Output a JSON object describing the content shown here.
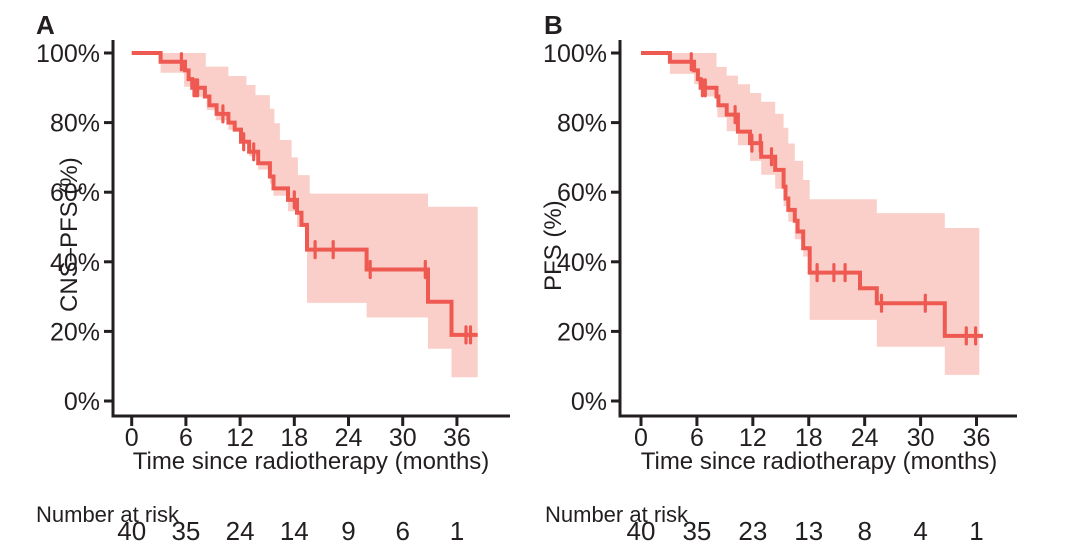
{
  "figure": {
    "colors": {
      "line": "#ee5a52",
      "band": "#fbcfc9",
      "axis": "#231f20",
      "text": "#231f20",
      "background": "#ffffff"
    }
  },
  "chart_data": [
    {
      "type": "line",
      "subtype": "kaplan-meier-step",
      "panel_label": "A",
      "ylabel": "CNS–PFS (%)",
      "xlabel": "Time since radiotherapy (months)",
      "risk_heading": "Number at risk",
      "x_ticks": [
        0,
        6,
        12,
        18,
        24,
        30,
        36
      ],
      "y_ticks": [
        "0%",
        "20%",
        "40%",
        "60%",
        "80%",
        "100%"
      ],
      "y_tick_values": [
        0,
        20,
        40,
        60,
        80,
        100
      ],
      "xlim": [
        0,
        42
      ],
      "ylim": [
        0,
        100
      ],
      "grid": false,
      "legend": "none",
      "risk_counts": [
        40,
        35,
        24,
        14,
        9,
        6,
        1
      ],
      "series": [
        {
          "name": "CNS-PFS",
          "steps": [
            [
              0,
              100
            ],
            [
              3.2,
              97.5
            ],
            [
              5.9,
              95
            ],
            [
              6.3,
              92.5
            ],
            [
              6.7,
              90
            ],
            [
              8.1,
              87.5
            ],
            [
              8.6,
              85
            ],
            [
              9.4,
              82.5
            ],
            [
              10.7,
              80
            ],
            [
              11.4,
              78
            ],
            [
              12.1,
              74.5
            ],
            [
              13.0,
              71.6
            ],
            [
              14.0,
              68.3
            ],
            [
              15.3,
              64.5
            ],
            [
              15.7,
              61.1
            ],
            [
              17.3,
              57.8
            ],
            [
              18.3,
              54.1
            ],
            [
              18.8,
              50.6
            ],
            [
              19.4,
              43.5
            ],
            [
              26.0,
              37.8
            ],
            [
              32.8,
              28.5
            ],
            [
              35.4,
              19.0
            ]
          ],
          "end_time": 38.3,
          "censors": [
            [
              5.5,
              97.5
            ],
            [
              6.9,
              90
            ],
            [
              7.1,
              90
            ],
            [
              7.3,
              90
            ],
            [
              10.1,
              82.5
            ],
            [
              12.4,
              74.5
            ],
            [
              13.5,
              71.6
            ],
            [
              18.0,
              57.8
            ],
            [
              20.3,
              43.5
            ],
            [
              22.3,
              43.5
            ],
            [
              26.4,
              37.8
            ],
            [
              32.5,
              37.8
            ],
            [
              37.0,
              19.0
            ],
            [
              37.5,
              19.0
            ]
          ],
          "ci_upper": [
            [
              0,
              100
            ],
            [
              8.2,
              96.1
            ],
            [
              10.7,
              93.4
            ],
            [
              12.7,
              90.8
            ],
            [
              13.7,
              87.9
            ],
            [
              15.3,
              84.0
            ],
            [
              15.8,
              79.8
            ],
            [
              16.4,
              75.0
            ],
            [
              17.7,
              70.0
            ],
            [
              18.4,
              64.9
            ],
            [
              19.7,
              59.6
            ],
            [
              32.8,
              55.8
            ]
          ],
          "ci_lower": [
            [
              0,
              100
            ],
            [
              3.2,
              94.3
            ],
            [
              5.8,
              90.3
            ],
            [
              6.8,
              87.4
            ],
            [
              8.3,
              83.6
            ],
            [
              9.3,
              80.7
            ],
            [
              10.7,
              77.9
            ],
            [
              12.1,
              74.0
            ],
            [
              13.0,
              70.3
            ],
            [
              14.0,
              66.5
            ],
            [
              15.3,
              62.5
            ],
            [
              15.7,
              59.0
            ],
            [
              17.3,
              54.5
            ],
            [
              18.3,
              50.0
            ],
            [
              19.4,
              28.2
            ],
            [
              26.0,
              24.0
            ],
            [
              32.8,
              15.0
            ],
            [
              35.4,
              6.8
            ]
          ],
          "band_end": 38.3
        }
      ]
    },
    {
      "type": "line",
      "subtype": "kaplan-meier-step",
      "panel_label": "B",
      "ylabel": "PFS (%)",
      "xlabel": "Time since radiotherapy (months)",
      "risk_heading": "Number at risk",
      "x_ticks": [
        0,
        6,
        12,
        18,
        24,
        30,
        36
      ],
      "y_ticks": [
        "0%",
        "20%",
        "40%",
        "60%",
        "80%",
        "100%"
      ],
      "y_tick_values": [
        0,
        20,
        40,
        60,
        80,
        100
      ],
      "xlim": [
        0,
        42
      ],
      "ylim": [
        0,
        100
      ],
      "grid": false,
      "legend": "none",
      "risk_counts": [
        40,
        35,
        23,
        13,
        8,
        4,
        1
      ],
      "series": [
        {
          "name": "PFS",
          "steps": [
            [
              0,
              100
            ],
            [
              3.1,
              97.5
            ],
            [
              5.7,
              95
            ],
            [
              6.1,
              92.5
            ],
            [
              6.4,
              90
            ],
            [
              8.1,
              87.5
            ],
            [
              8.3,
              85
            ],
            [
              9.2,
              82.3
            ],
            [
              10.4,
              77.4
            ],
            [
              11.7,
              74.1
            ],
            [
              12.9,
              70.2
            ],
            [
              14.4,
              66.4
            ],
            [
              15.3,
              61.6
            ],
            [
              15.5,
              58.2
            ],
            [
              15.8,
              54.9
            ],
            [
              16.5,
              51.8
            ],
            [
              16.8,
              48.7
            ],
            [
              17.4,
              43.9
            ],
            [
              18.1,
              36.9
            ],
            [
              23.5,
              32.4
            ],
            [
              25.3,
              28.1
            ],
            [
              32.6,
              18.7
            ]
          ],
          "end_time": 36.7,
          "censors": [
            [
              5.4,
              97.5
            ],
            [
              6.6,
              90
            ],
            [
              6.9,
              90
            ],
            [
              10.1,
              82.3
            ],
            [
              11.9,
              74.1
            ],
            [
              12.8,
              74.1
            ],
            [
              14.0,
              70.2
            ],
            [
              18.9,
              36.9
            ],
            [
              20.7,
              36.9
            ],
            [
              21.9,
              36.9
            ],
            [
              25.8,
              28.1
            ],
            [
              30.5,
              28.1
            ],
            [
              34.9,
              18.7
            ],
            [
              35.9,
              18.7
            ]
          ],
          "ci_upper": [
            [
              0,
              100
            ],
            [
              8.1,
              96.0
            ],
            [
              9.2,
              93.5
            ],
            [
              10.4,
              91.0
            ],
            [
              11.7,
              88.5
            ],
            [
              12.9,
              86.0
            ],
            [
              14.4,
              82.5
            ],
            [
              15.3,
              78.5
            ],
            [
              15.8,
              74.0
            ],
            [
              16.5,
              69.0
            ],
            [
              17.4,
              63.5
            ],
            [
              18.1,
              58.0
            ],
            [
              25.3,
              54.0
            ],
            [
              32.6,
              49.7
            ]
          ],
          "ci_lower": [
            [
              0,
              100
            ],
            [
              3.1,
              94.0
            ],
            [
              5.7,
              91.0
            ],
            [
              6.4,
              87.5
            ],
            [
              8.2,
              81.5
            ],
            [
              9.2,
              77.5
            ],
            [
              10.4,
              73.5
            ],
            [
              11.7,
              69.0
            ],
            [
              12.9,
              65.0
            ],
            [
              14.4,
              61.0
            ],
            [
              15.3,
              56.0
            ],
            [
              15.8,
              51.5
            ],
            [
              16.5,
              46.5
            ],
            [
              17.4,
              41.5
            ],
            [
              18.1,
              23.3
            ],
            [
              25.3,
              15.6
            ],
            [
              32.6,
              7.5
            ]
          ],
          "band_end": 36.3
        }
      ]
    }
  ]
}
